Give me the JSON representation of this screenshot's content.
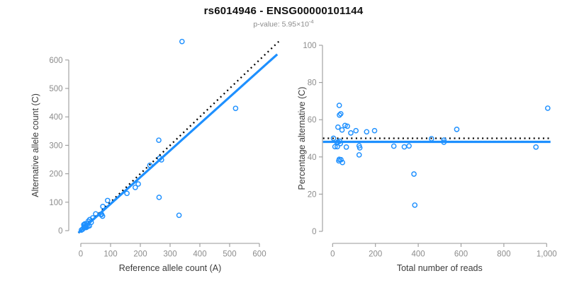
{
  "header": {
    "title": "rs6014946 - ENSG00000101144",
    "subtitle": {
      "prefix": "p-value: 5.95×10",
      "exponent": "-4"
    }
  },
  "colors": {
    "point_blue": "#1E90FF",
    "line_blue": "#1E90FF",
    "dotted_black": "#000000",
    "axis_gray": "#9a9a9a",
    "tick_text_gray": "#8c8c8c",
    "axis_title_gray": "#3c3c3c",
    "subtitle_gray": "#8c8c8c",
    "background": "#ffffff"
  },
  "chart_data": [
    {
      "id": "allele-count-scatter",
      "type": "scatter",
      "xlabel": "Reference allele count (A)",
      "ylabel": "Alternative allele count (C)",
      "xlim": [
        0,
        600
      ],
      "ylim": [
        0,
        600
      ],
      "xticks": [
        0,
        100,
        200,
        300,
        400,
        500,
        600
      ],
      "yticks": [
        0,
        100,
        200,
        300,
        400,
        500,
        600
      ],
      "xtick_labels": [
        "0",
        "100",
        "200",
        "300",
        "400",
        "500",
        "600"
      ],
      "ytick_labels": [
        "0",
        "100",
        "200",
        "300",
        "400",
        "500",
        "600"
      ],
      "grid": false,
      "point_color": "#1E90FF",
      "points": [
        [
          10,
          21
        ],
        [
          14,
          24
        ],
        [
          12,
          20
        ],
        [
          11,
          14
        ],
        [
          20,
          24
        ],
        [
          25,
          33
        ],
        [
          30,
          39
        ],
        [
          40,
          45
        ],
        [
          50,
          59
        ],
        [
          74,
          85
        ],
        [
          90,
          106
        ],
        [
          2,
          2
        ],
        [
          17,
          16
        ],
        [
          13,
          12
        ],
        [
          11,
          10
        ],
        [
          19,
          17
        ],
        [
          6,
          5
        ],
        [
          12,
          10
        ],
        [
          35,
          29
        ],
        [
          67,
          57
        ],
        [
          70,
          57
        ],
        [
          19,
          12
        ],
        [
          24,
          15
        ],
        [
          18,
          11
        ],
        [
          29,
          17
        ],
        [
          73,
          51
        ],
        [
          155,
          131
        ],
        [
          183,
          152
        ],
        [
          193,
          164
        ],
        [
          232,
          230
        ],
        [
          265,
          255
        ],
        [
          271,
          249
        ],
        [
          262,
          318
        ],
        [
          263,
          117
        ],
        [
          330,
          54
        ],
        [
          520,
          430
        ],
        [
          340,
          665
        ]
      ],
      "lines": [
        {
          "name": "identity-line",
          "style": "dotted",
          "color": "#000000",
          "from": [
            -8,
            -8
          ],
          "to": [
            665,
            665
          ]
        },
        {
          "name": "fit-line",
          "style": "solid",
          "color": "#1E90FF",
          "from": [
            -8,
            -7.5
          ],
          "to": [
            660,
            620
          ]
        }
      ]
    },
    {
      "id": "percentage-alternative-scatter",
      "type": "scatter",
      "xlabel": "Total number of reads",
      "ylabel": "Percentage alternative (C)",
      "xlim": [
        0,
        1000
      ],
      "ylim": [
        0,
        100
      ],
      "xticks": [
        0,
        200,
        400,
        600,
        800,
        1000
      ],
      "yticks": [
        0,
        20,
        40,
        60,
        80,
        100
      ],
      "xtick_labels": [
        "0",
        "200",
        "400",
        "600",
        "800",
        "1,000"
      ],
      "ytick_labels": [
        "0",
        "20",
        "40",
        "60",
        "80",
        "100"
      ],
      "grid": false,
      "point_color": "#1E90FF",
      "points": [
        [
          31,
          67.7
        ],
        [
          38,
          63.2
        ],
        [
          32,
          62.5
        ],
        [
          25,
          56.0
        ],
        [
          44,
          54.5
        ],
        [
          58,
          56.9
        ],
        [
          69,
          56.5
        ],
        [
          85,
          52.9
        ],
        [
          109,
          54.1
        ],
        [
          159,
          53.5
        ],
        [
          196,
          54.1
        ],
        [
          4,
          50.0
        ],
        [
          33,
          48.5
        ],
        [
          25,
          48.0
        ],
        [
          21,
          47.6
        ],
        [
          36,
          47.2
        ],
        [
          11,
          45.5
        ],
        [
          22,
          45.5
        ],
        [
          64,
          45.3
        ],
        [
          124,
          46.0
        ],
        [
          127,
          44.9
        ],
        [
          31,
          38.7
        ],
        [
          39,
          38.5
        ],
        [
          29,
          37.9
        ],
        [
          46,
          37.0
        ],
        [
          124,
          41.1
        ],
        [
          286,
          45.8
        ],
        [
          335,
          45.4
        ],
        [
          357,
          45.9
        ],
        [
          462,
          49.8
        ],
        [
          520,
          49.0
        ],
        [
          520,
          47.9
        ],
        [
          580,
          54.8
        ],
        [
          380,
          30.8
        ],
        [
          384,
          14.1
        ],
        [
          950,
          45.3
        ],
        [
          1005,
          66.2
        ]
      ],
      "lines": [
        {
          "name": "expected-50pct-line",
          "style": "dotted",
          "color": "#000000",
          "from": [
            -45,
            50
          ],
          "to": [
            1018,
            50
          ]
        },
        {
          "name": "mean-percentage-line",
          "style": "solid",
          "color": "#1E90FF",
          "from": [
            -45,
            48.1
          ],
          "to": [
            1018,
            48.1
          ]
        }
      ]
    }
  ]
}
